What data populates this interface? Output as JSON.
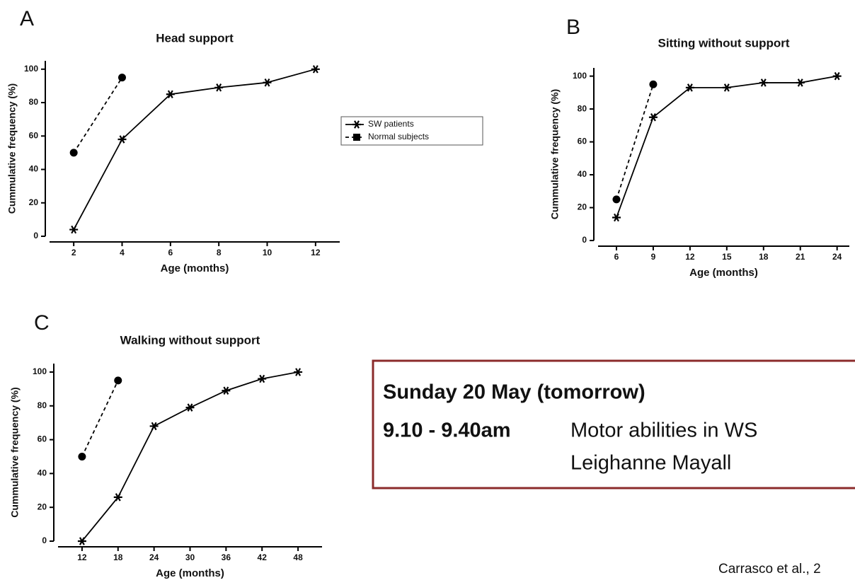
{
  "chart_data": [
    {
      "type": "line",
      "label": "A",
      "title": "Head support",
      "xlabel": "Age (months)",
      "ylabel": "Cummulative frequency (%)",
      "xlim": [
        1,
        13
      ],
      "xticks": [
        2,
        4,
        6,
        8,
        10,
        12
      ],
      "ylim": [
        0,
        105
      ],
      "yticks": [
        0,
        20,
        40,
        60,
        80,
        100
      ],
      "legend": "right",
      "series": [
        {
          "name": "SW patients",
          "color": "#000000",
          "marker": "star",
          "linestyle": "solid",
          "x": [
            2,
            4,
            6,
            8,
            10,
            12
          ],
          "values": [
            4,
            58,
            85,
            89,
            92,
            100
          ]
        },
        {
          "name": "Normal subjects",
          "color": "#000000",
          "marker": "circle",
          "linestyle": "dashed",
          "x": [
            2,
            4
          ],
          "values": [
            50,
            95
          ]
        }
      ]
    },
    {
      "type": "line",
      "label": "B",
      "title": "Sitting without support",
      "xlabel": "Age (months)",
      "ylabel": "Cummulative frequency (%)",
      "xlim": [
        4.5,
        25
      ],
      "xticks": [
        6,
        9,
        12,
        15,
        18,
        21,
        24
      ],
      "ylim": [
        0,
        105
      ],
      "yticks": [
        0,
        20,
        40,
        60,
        80,
        100
      ],
      "series": [
        {
          "color": "#000000",
          "marker": "star",
          "linestyle": "solid",
          "x": [
            6,
            9,
            12,
            15,
            18,
            21,
            24
          ],
          "values": [
            14,
            75,
            93,
            93,
            96,
            96,
            100
          ]
        },
        {
          "color": "#000000",
          "marker": "circle",
          "linestyle": "dashed",
          "x": [
            6,
            9
          ],
          "values": [
            25,
            95
          ]
        }
      ]
    },
    {
      "type": "line",
      "label": "C",
      "title": "Walking without support",
      "xlabel": "Age (months)",
      "ylabel": "Cummulative frequency (%)",
      "xlim": [
        8,
        52
      ],
      "xticks": [
        12,
        18,
        24,
        30,
        36,
        42,
        48
      ],
      "ylim": [
        0,
        105
      ],
      "yticks": [
        0,
        20,
        40,
        60,
        80,
        100
      ],
      "series": [
        {
          "color": "#000000",
          "marker": "star",
          "linestyle": "solid",
          "x": [
            12,
            18,
            24,
            30,
            36,
            42,
            48
          ],
          "values": [
            0,
            26,
            68,
            79,
            89,
            96,
            100
          ]
        },
        {
          "color": "#000000",
          "marker": "circle",
          "linestyle": "dashed",
          "x": [
            12,
            18
          ],
          "values": [
            50,
            95
          ]
        }
      ]
    }
  ],
  "notice": {
    "date": "Sunday 20 May (tomorrow)",
    "time": "9.10 - 9.40am",
    "talk": "Motor abilities in WS",
    "speaker": "Leighanne Mayall"
  },
  "citation": "Carrasco et al., 2"
}
